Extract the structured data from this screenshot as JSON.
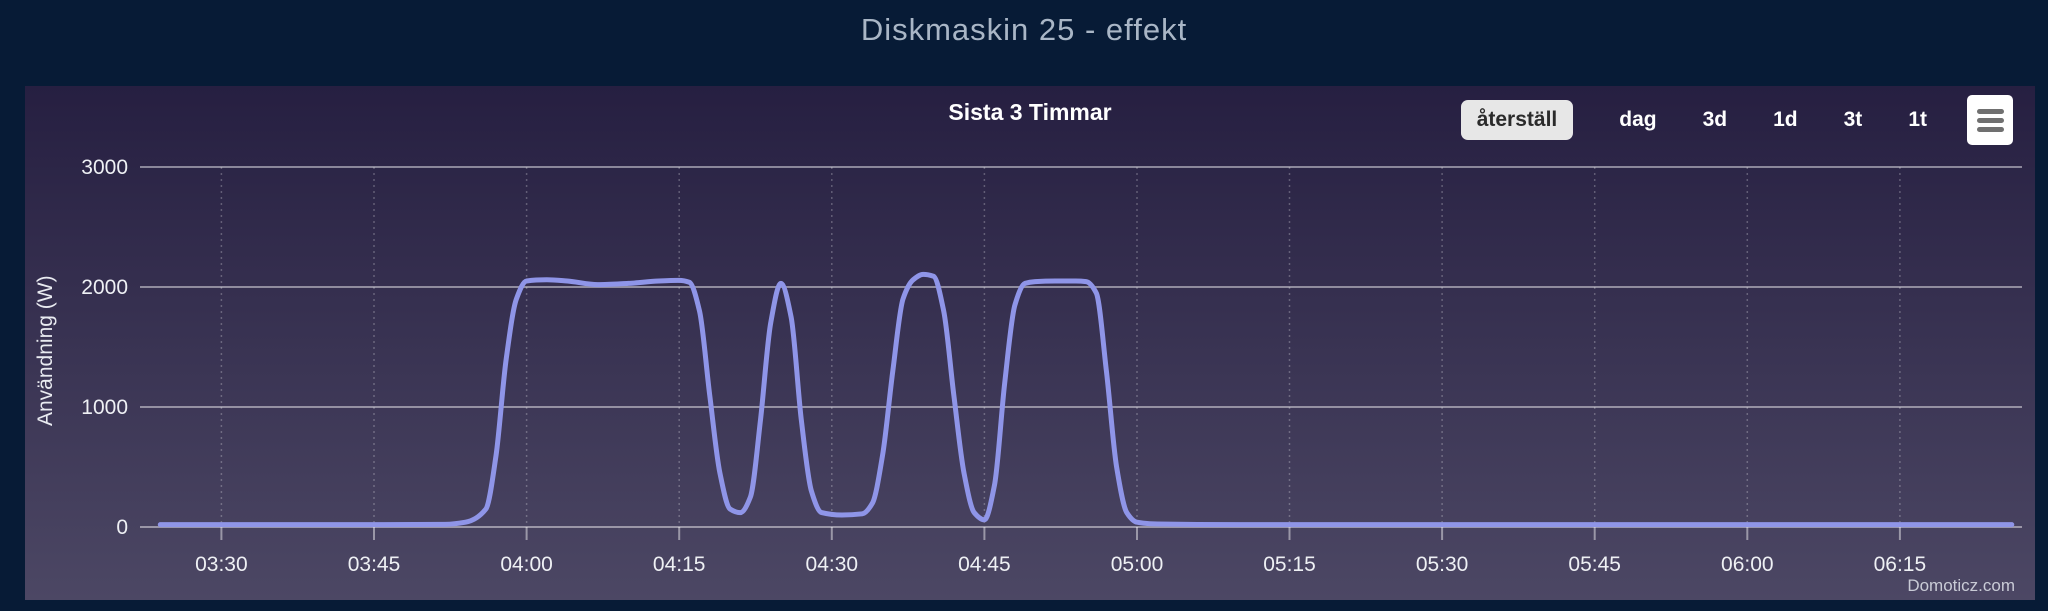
{
  "page": {
    "title": "Diskmaskin 25 - effekt",
    "background_color": "#071b36"
  },
  "chart": {
    "header_title": "Sista 3 Timmar",
    "buttons": {
      "reset": "återställ",
      "day": "dag",
      "three_days": "3d",
      "one_day": "1d",
      "three_hours": "3t",
      "one_hour": "1t"
    },
    "watermark": "Domoticz.com",
    "colors": {
      "card_top": "#261f41",
      "card_bottom": "#4c4764",
      "line": "#8f95e8",
      "grid": "rgba(255,255,255,0.45)",
      "grid_dotted": "rgba(255,255,255,0.25)",
      "tick_label": "#eef0f4",
      "reset_button_bg": "#e7e7e7",
      "menu_bar": "#707070"
    }
  },
  "chart_data": {
    "type": "line",
    "title": "Sista 3 Timmar",
    "xlabel": "",
    "ylabel": "Användning (W)",
    "ylim": [
      0,
      3000
    ],
    "y_ticks": [
      0,
      1000,
      2000,
      3000
    ],
    "x_tick_labels": [
      "03:30",
      "03:45",
      "04:00",
      "04:15",
      "04:30",
      "04:45",
      "05:00",
      "05:15",
      "05:30",
      "05:45",
      "06:00",
      "06:15"
    ],
    "x_range": [
      "03:22",
      "06:27"
    ],
    "grid": true,
    "legend": "none",
    "series": [
      {
        "name": "Användning (W)",
        "color": "#8f95e8",
        "points": [
          [
            "03:24",
            20
          ],
          [
            "03:30",
            20
          ],
          [
            "03:38",
            20
          ],
          [
            "03:46",
            20
          ],
          [
            "03:52",
            22
          ],
          [
            "03:54",
            40
          ],
          [
            "03:56",
            150
          ],
          [
            "03:57",
            600
          ],
          [
            "03:58",
            1400
          ],
          [
            "03:59",
            1900
          ],
          [
            "04:00",
            2050
          ],
          [
            "04:02",
            2060
          ],
          [
            "04:04",
            2050
          ],
          [
            "04:07",
            2020
          ],
          [
            "04:10",
            2030
          ],
          [
            "04:13",
            2050
          ],
          [
            "04:15",
            2055
          ],
          [
            "04:16",
            2040
          ],
          [
            "04:17",
            1800
          ],
          [
            "04:18",
            1100
          ],
          [
            "04:19",
            450
          ],
          [
            "04:20",
            150
          ],
          [
            "04:21",
            120
          ],
          [
            "04:22",
            250
          ],
          [
            "04:23",
            900
          ],
          [
            "04:24",
            1700
          ],
          [
            "04:25",
            2030
          ],
          [
            "04:26",
            1750
          ],
          [
            "04:27",
            900
          ],
          [
            "04:28",
            300
          ],
          [
            "04:29",
            120
          ],
          [
            "04:31",
            100
          ],
          [
            "04:33",
            110
          ],
          [
            "04:34",
            200
          ],
          [
            "04:35",
            600
          ],
          [
            "04:36",
            1300
          ],
          [
            "04:37",
            1900
          ],
          [
            "04:38",
            2060
          ],
          [
            "04:39",
            2105
          ],
          [
            "04:40",
            2090
          ],
          [
            "04:41",
            1800
          ],
          [
            "04:42",
            1100
          ],
          [
            "04:43",
            450
          ],
          [
            "04:44",
            120
          ],
          [
            "04:45",
            60
          ],
          [
            "04:46",
            350
          ],
          [
            "04:47",
            1200
          ],
          [
            "04:48",
            1850
          ],
          [
            "04:49",
            2030
          ],
          [
            "04:50",
            2045
          ],
          [
            "04:52",
            2050
          ],
          [
            "04:54",
            2050
          ],
          [
            "04:55",
            2045
          ],
          [
            "04:56",
            1950
          ],
          [
            "04:57",
            1300
          ],
          [
            "04:58",
            500
          ],
          [
            "04:59",
            120
          ],
          [
            "05:00",
            40
          ],
          [
            "05:02",
            25
          ],
          [
            "05:10",
            20
          ],
          [
            "05:20",
            20
          ],
          [
            "05:30",
            20
          ],
          [
            "05:40",
            20
          ],
          [
            "05:50",
            20
          ],
          [
            "06:00",
            20
          ],
          [
            "06:10",
            20
          ],
          [
            "06:20",
            20
          ],
          [
            "06:26",
            20
          ]
        ]
      }
    ]
  }
}
